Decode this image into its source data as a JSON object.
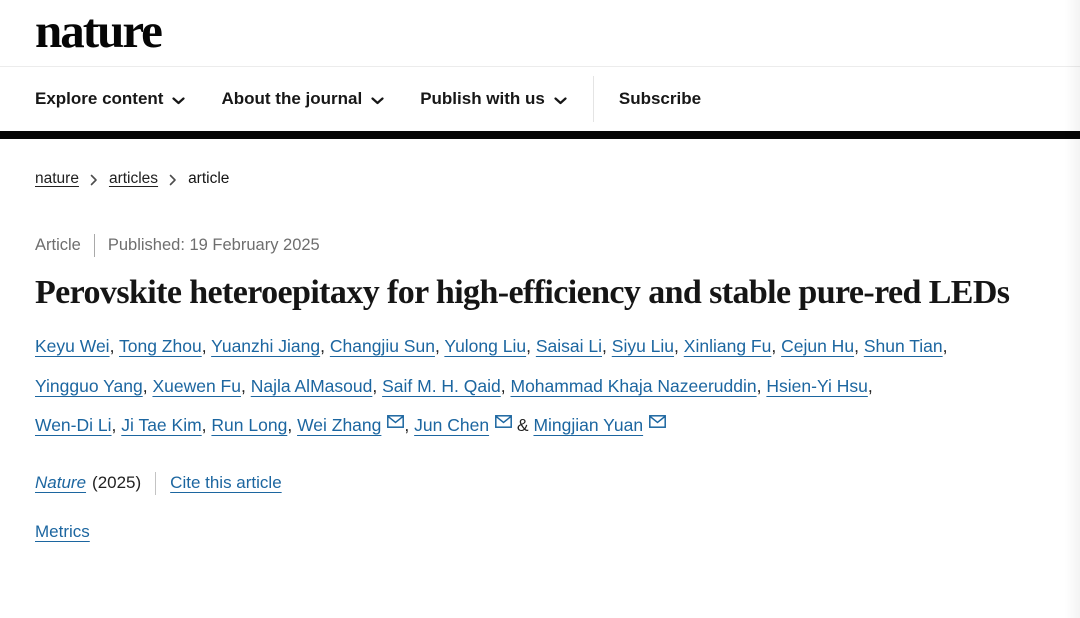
{
  "page": {
    "brand": "nature"
  },
  "nav": {
    "items": [
      {
        "label": "Explore content"
      },
      {
        "label": "About the journal"
      },
      {
        "label": "Publish with us"
      }
    ],
    "subscribe_label": "Subscribe"
  },
  "breadcrumb": {
    "items": [
      "nature",
      "articles",
      "article"
    ]
  },
  "article": {
    "type_label": "Article",
    "published_label": "Published: 19 February 2025",
    "title": "Perovskite heteroepitaxy for high-efficiency and stable pure-red LEDs",
    "authors": [
      {
        "name": "Keyu Wei"
      },
      {
        "name": "Tong Zhou"
      },
      {
        "name": "Yuanzhi Jiang"
      },
      {
        "name": "Changjiu Sun"
      },
      {
        "name": "Yulong Liu"
      },
      {
        "name": "Saisai Li"
      },
      {
        "name": "Siyu Liu"
      },
      {
        "name": "Xinliang Fu"
      },
      {
        "name": "Cejun Hu"
      },
      {
        "name": "Shun Tian"
      },
      {
        "name": "Yingguo Yang"
      },
      {
        "name": "Xuewen Fu"
      },
      {
        "name": "Najla AlMasoud"
      },
      {
        "name": "Saif M. H. Qaid"
      },
      {
        "name": "Mohammad Khaja Nazeeruddin"
      },
      {
        "name": "Hsien-Yi Hsu"
      },
      {
        "name": "Wen-Di Li"
      },
      {
        "name": "Ji Tae Kim"
      },
      {
        "name": "Run Long"
      },
      {
        "name": "Wei Zhang",
        "email": true
      },
      {
        "name": "Jun Chen",
        "email": true
      },
      {
        "name": "Mingjian Yuan",
        "email": true
      }
    ],
    "journal_name": "Nature",
    "journal_year": "(2025)",
    "cite_label": "Cite this article",
    "metrics_label": "Metrics"
  },
  "colors": {
    "link_blue": "#1c66a0",
    "heading_dark": "#151515",
    "meta_gray": "#6e6e6e",
    "header_rule_black": "#050505"
  }
}
